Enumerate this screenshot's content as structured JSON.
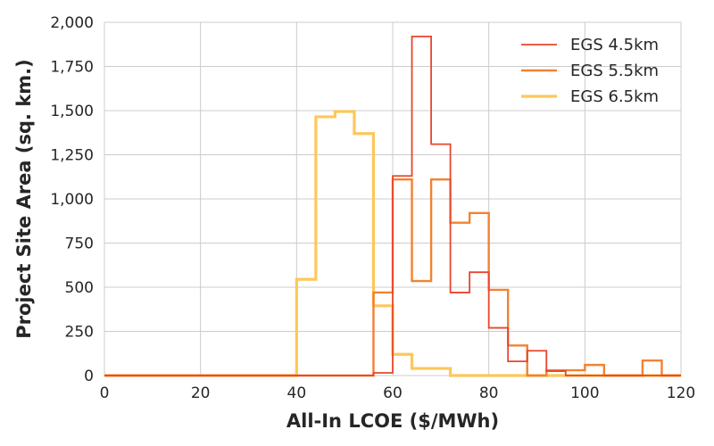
{
  "chart_data": {
    "type": "line",
    "subtype": "step-histogram",
    "title": "",
    "xlabel": "All-In LCOE ($/MWh)",
    "ylabel": "Project Site Area (sq. km.)",
    "xlim": [
      0,
      120
    ],
    "ylim": [
      0,
      2000
    ],
    "x_ticks": [
      0,
      20,
      40,
      60,
      80,
      100,
      120
    ],
    "y_ticks": [
      0,
      250,
      500,
      750,
      1000,
      1250,
      1500,
      1750,
      2000
    ],
    "x_tick_labels": [
      "0",
      "20",
      "40",
      "60",
      "80",
      "100",
      "120"
    ],
    "y_tick_labels": [
      "0",
      "250",
      "500",
      "750",
      "1,000",
      "1,250",
      "1,500",
      "1,750",
      "2,000"
    ],
    "grid": true,
    "legend_position": "top-right",
    "bin_edges": [
      0,
      4,
      8,
      12,
      16,
      20,
      24,
      28,
      32,
      36,
      40,
      44,
      48,
      52,
      56,
      60,
      64,
      68,
      72,
      76,
      80,
      84,
      88,
      92,
      96,
      100,
      104,
      108,
      112,
      116,
      120
    ],
    "series": [
      {
        "name": "EGS 4.5km",
        "color": "#e8452c",
        "values": [
          0,
          0,
          0,
          0,
          0,
          0,
          0,
          0,
          0,
          0,
          0,
          0,
          0,
          0,
          15,
          1130,
          1920,
          1310,
          470,
          585,
          270,
          80,
          140,
          25,
          0,
          0,
          0,
          0,
          0,
          0
        ]
      },
      {
        "name": "EGS 5.5km",
        "color": "#f28232",
        "values": [
          0,
          0,
          0,
          0,
          0,
          0,
          0,
          0,
          0,
          0,
          0,
          0,
          0,
          0,
          470,
          1110,
          535,
          1110,
          865,
          920,
          485,
          170,
          0,
          30,
          30,
          60,
          0,
          0,
          85,
          0
        ]
      },
      {
        "name": "EGS 6.5km",
        "color": "#fdc75a",
        "values": [
          0,
          0,
          0,
          0,
          0,
          0,
          0,
          0,
          0,
          0,
          545,
          1465,
          1495,
          1370,
          395,
          120,
          40,
          40,
          0,
          0,
          0,
          0,
          0,
          0,
          0,
          0,
          0,
          0,
          0,
          0
        ]
      }
    ]
  }
}
